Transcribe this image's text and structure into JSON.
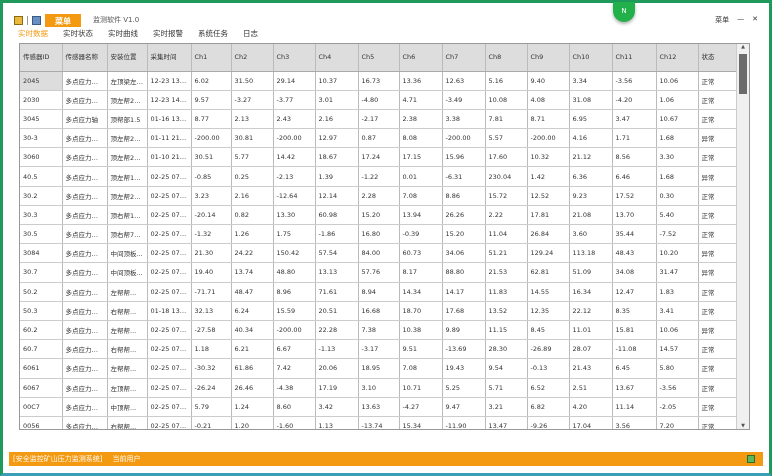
{
  "window": {
    "title": "监测软件 V1.0",
    "menu_label": "菜单",
    "badge": "N",
    "controls": [
      "菜单",
      "—",
      "✕"
    ]
  },
  "tabs": [
    {
      "label": "实时数据",
      "active": true
    },
    {
      "label": "实时状态"
    },
    {
      "label": "实时曲线"
    },
    {
      "label": "实时报警"
    },
    {
      "label": "系统任务"
    },
    {
      "label": "日志"
    }
  ],
  "table": {
    "headers": [
      "传感器ID",
      "传感器名称",
      "安装位置",
      "采集时间",
      "Ch1",
      "Ch2",
      "Ch3",
      "Ch4",
      "Ch5",
      "Ch6",
      "Ch7",
      "Ch8",
      "Ch9",
      "Ch10",
      "Ch11",
      "Ch12",
      "状态"
    ],
    "rows": [
      [
        "2045",
        "多点应力轴...",
        "左顶梁左侧...",
        "12-23 13:4...",
        "6.02",
        "31.50",
        "29.14",
        "10.37",
        "16.73",
        "13.36",
        "12.63",
        "5.16",
        "9.40",
        "3.34",
        "-3.56",
        "10.06",
        "正常"
      ],
      [
        "2030",
        "多点应力轴...",
        "顶左帮2000...",
        "12-23 14:1...",
        "9.57",
        "-3.27",
        "-3.77",
        "3.01",
        "-4.80",
        "4.71",
        "-3.49",
        "10.08",
        "4.08",
        "31.08",
        "-4.20",
        "1.06",
        "正常"
      ],
      [
        "3045",
        "多点应力轴",
        "顶帮部1.5",
        "01-16 13:46",
        "8.77",
        "2.13",
        "2.43",
        "2.16",
        "-2.17",
        "2.38",
        "3.38",
        "7.81",
        "8.71",
        "6.95",
        "3.47",
        "10.67",
        "正常"
      ],
      [
        "30-3",
        "多点应力轴...",
        "顶左帮200m...",
        "01-11 21:4...",
        "-200.00",
        "30.81",
        "-200.00",
        "12.97",
        "0.87",
        "8.08",
        "-200.00",
        "5.57",
        "-200.00",
        "4.16",
        "1.71",
        "1.68",
        "异常"
      ],
      [
        "3060",
        "多点应力轴...",
        "顶左帮2000...",
        "01-10 21:4...",
        "30.51",
        "5.77",
        "14.42",
        "18.67",
        "17.24",
        "17.15",
        "15.96",
        "17.60",
        "10.32",
        "21.12",
        "8.56",
        "3.30",
        "正常"
      ],
      [
        "40.5",
        "多点应力轴...",
        "顶左帮150m...",
        "02-25 07:59...",
        "-0.85",
        "0.25",
        "-2.13",
        "1.39",
        "-1.22",
        "0.01",
        "-6.31",
        "230.04",
        "1.42",
        "6.36",
        "6.46",
        "1.68",
        "异常"
      ],
      [
        "30.2",
        "多点应力轴...",
        "顶左帮2000...",
        "02-25 07:59...",
        "3.23",
        "2.16",
        "-12.64",
        "12.14",
        "2.28",
        "7.08",
        "8.86",
        "15.72",
        "12.52",
        "9.23",
        "17.52",
        "0.30",
        "正常"
      ],
      [
        "30.3",
        "多点应力轴...",
        "顶右帮1000m...",
        "02-25 07:59...",
        "-20.14",
        "0.82",
        "13.30",
        "60.98",
        "15.20",
        "13.94",
        "26.26",
        "2.22",
        "17.81",
        "21.08",
        "13.70",
        "5.40",
        "正常"
      ],
      [
        "30.5",
        "多点应力轴...",
        "顶右帮750m...",
        "02-25 07:59...",
        "-1.32",
        "1.26",
        "1.75",
        "-1.86",
        "16.80",
        "-0.39",
        "15.20",
        "11.04",
        "26.84",
        "3.60",
        "35.44",
        "-7.52",
        "正常"
      ],
      [
        "3084",
        "多点应力轴...",
        "中间顶板...",
        "02-25 07:59...",
        "21.30",
        "24.22",
        "150.42",
        "57.54",
        "84.00",
        "60.73",
        "34.06",
        "51.21",
        "129.24",
        "113.18",
        "48.43",
        "10.20",
        "异常"
      ],
      [
        "30.7",
        "多点应力轴...",
        "中间顶板...",
        "02-25 07:59...",
        "19.40",
        "13.74",
        "48.80",
        "13.13",
        "57.76",
        "8.17",
        "88.80",
        "21.53",
        "62.81",
        "51.09",
        "34.08",
        "31.47",
        "异常"
      ],
      [
        "50.2",
        "多点应力轴...",
        "左帮帮...",
        "02-25 07:59...",
        "-71.71",
        "48.47",
        "8.96",
        "71.61",
        "8.94",
        "14.34",
        "14.17",
        "11.83",
        "14.55",
        "16.34",
        "12.47",
        "1.83",
        "正常"
      ],
      [
        "50.3",
        "多点应力轴...",
        "右帮帮...",
        "01-18 13:48...",
        "32.13",
        "6.24",
        "15.59",
        "20.51",
        "16.68",
        "18.70",
        "17.68",
        "13.52",
        "12.35",
        "22.12",
        "8.35",
        "3.41",
        "正常"
      ],
      [
        "60.2",
        "多点应力轴...",
        "左帮帮...",
        "02-25 07:59...",
        "-27.58",
        "40.34",
        "-200.00",
        "22.28",
        "7.38",
        "10.38",
        "9.89",
        "11.15",
        "8.45",
        "11.01",
        "15.81",
        "10.06",
        "异常"
      ],
      [
        "60.7",
        "多点应力轴...",
        "右帮帮...",
        "02-25 07:59...",
        "1.18",
        "6.21",
        "6.67",
        "-1.13",
        "-3.17",
        "9.51",
        "-13.69",
        "28.30",
        "-26.89",
        "28.07",
        "-11.08",
        "14.57",
        "正常"
      ],
      [
        "6061",
        "多点应力轴...",
        "左帮帮...",
        "02-25 07:59...",
        "-30.32",
        "61.86",
        "7.42",
        "20.06",
        "18.95",
        "7.08",
        "19.43",
        "9.54",
        "-0.13",
        "21.43",
        "6.45",
        "5.80",
        "正常"
      ],
      [
        "6067",
        "多点应力轴...",
        "左顶帮...",
        "02-25 07:59...",
        "-26.24",
        "26.46",
        "-4.38",
        "17.19",
        "3.10",
        "10.71",
        "5.25",
        "5.71",
        "6.52",
        "2.51",
        "13.67",
        "-3.56",
        "正常"
      ],
      [
        "00C7",
        "多点应力轴...",
        "中顶帮...",
        "02-25 07:59...",
        "5.79",
        "1.24",
        "8.60",
        "3.42",
        "13.63",
        "-4.27",
        "9.47",
        "3.21",
        "6.82",
        "4.20",
        "11.14",
        "-2.05",
        "正常"
      ],
      [
        "0056",
        "多点应力轴...",
        "右帮帮...",
        "02-25 07:59...",
        "-0.21",
        "1.20",
        "-1.60",
        "1.13",
        "-13.74",
        "15.34",
        "-11.90",
        "13.47",
        "-9.26",
        "17.04",
        "3.56",
        "7.20",
        "正常"
      ]
    ]
  },
  "statusbar": {
    "system": "[安全监控矿山压力监测系统]",
    "user": "当前用户"
  },
  "colors": {
    "accent": "#f39a12",
    "border": "#1f9a5c",
    "badge": "#22b04b"
  }
}
